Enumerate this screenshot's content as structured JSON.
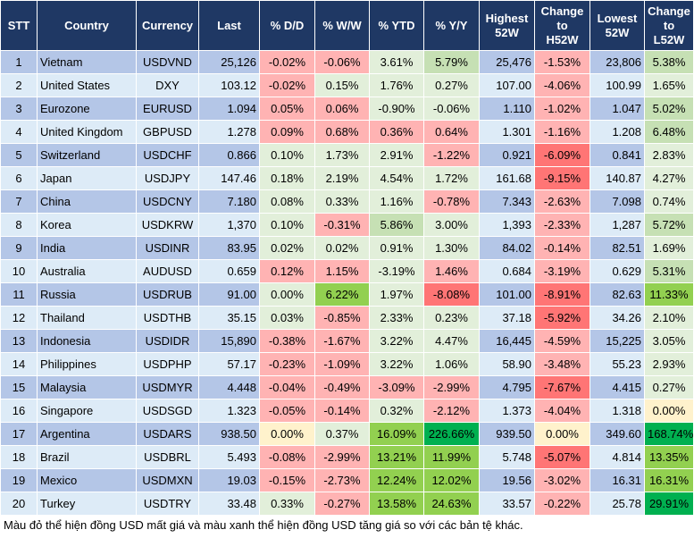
{
  "palette": {
    "r": "#ffb3b3",
    "R": "#ff7575",
    "g": "#e2efda",
    "G": "#c6e0b4",
    "V": "#92d050",
    "D": "#00b050",
    "y": "#fff2cc"
  },
  "headers": [
    "STT",
    "Country",
    "Currency",
    "Last",
    "% D/D",
    "% W/W",
    "% YTD",
    "% Y/Y",
    "Highest\n52W",
    "Change\nto\nH52W",
    "Lowest\n52W",
    "Change\nto\nL52W"
  ],
  "rows": [
    {
      "cells": [
        "1",
        "Vietnam",
        "USDVND",
        "25,126",
        "-0.02%",
        "-0.06%",
        "3.61%",
        "5.79%",
        "25,476",
        "-1.53%",
        "23,806",
        "5.38%"
      ],
      "colors": "rrgGrG"
    },
    {
      "cells": [
        "2",
        "United States",
        "DXY",
        "103.12",
        "-0.02%",
        "0.15%",
        "1.76%",
        "0.27%",
        "107.00",
        "-4.06%",
        "100.99",
        "1.65%"
      ],
      "colors": "rgggrg"
    },
    {
      "cells": [
        "3",
        "Eurozone",
        "EURUSD",
        "1.094",
        "0.05%",
        "0.06%",
        "-0.90%",
        "-0.06%",
        "1.110",
        "-1.02%",
        "1.047",
        "5.02%"
      ],
      "colors": "rrggrG"
    },
    {
      "cells": [
        "4",
        "United Kingdom",
        "GBPUSD",
        "1.278",
        "0.09%",
        "0.68%",
        "0.36%",
        "0.64%",
        "1.301",
        "-1.16%",
        "1.208",
        "6.48%"
      ],
      "colors": "rrrrrG"
    },
    {
      "cells": [
        "5",
        "Switzerland",
        "USDCHF",
        "0.866",
        "0.10%",
        "1.73%",
        "2.91%",
        "-1.22%",
        "0.921",
        "-6.09%",
        "0.841",
        "2.83%"
      ],
      "colors": "gggrRg"
    },
    {
      "cells": [
        "6",
        "Japan",
        "USDJPY",
        "147.46",
        "0.18%",
        "2.19%",
        "4.54%",
        "1.72%",
        "161.68",
        "-9.15%",
        "140.87",
        "4.27%"
      ],
      "colors": "ggggRg"
    },
    {
      "cells": [
        "7",
        "China",
        "USDCNY",
        "7.180",
        "0.08%",
        "0.33%",
        "1.16%",
        "-0.78%",
        "7.343",
        "-2.63%",
        "7.098",
        "0.74%"
      ],
      "colors": "gggrrg"
    },
    {
      "cells": [
        "8",
        "Korea",
        "USDKRW",
        "1,370",
        "0.10%",
        "-0.31%",
        "5.86%",
        "3.00%",
        "1,393",
        "-2.33%",
        "1,287",
        "5.72%"
      ],
      "colors": "grGgrG"
    },
    {
      "cells": [
        "9",
        "India",
        "USDINR",
        "83.95",
        "0.02%",
        "0.02%",
        "0.91%",
        "1.30%",
        "84.02",
        "-0.14%",
        "82.51",
        "1.69%"
      ],
      "colors": "ggggrg"
    },
    {
      "cells": [
        "10",
        "Australia",
        "AUDUSD",
        "0.659",
        "0.12%",
        "1.15%",
        "-3.19%",
        "1.46%",
        "0.684",
        "-3.19%",
        "0.629",
        "5.31%"
      ],
      "colors": "rrgrrG"
    },
    {
      "cells": [
        "11",
        "Russia",
        "USDRUB",
        "91.00",
        "0.00%",
        "6.22%",
        "1.97%",
        "-8.08%",
        "101.00",
        "-8.91%",
        "82.63",
        "11.33%"
      ],
      "colors": "gVgRRV"
    },
    {
      "cells": [
        "12",
        "Thailand",
        "USDTHB",
        "35.15",
        "0.03%",
        "-0.85%",
        "2.33%",
        "0.23%",
        "37.18",
        "-5.92%",
        "34.26",
        "2.10%"
      ],
      "colors": "grggRg"
    },
    {
      "cells": [
        "13",
        "Indonesia",
        "USDIDR",
        "15,890",
        "-0.38%",
        "-1.67%",
        "3.22%",
        "4.47%",
        "16,445",
        "-4.59%",
        "15,225",
        "3.05%"
      ],
      "colors": "rrggrg"
    },
    {
      "cells": [
        "14",
        "Philippines",
        "USDPHP",
        "57.17",
        "-0.23%",
        "-1.09%",
        "3.22%",
        "1.06%",
        "58.90",
        "-3.48%",
        "55.23",
        "2.93%"
      ],
      "colors": "rrggrg"
    },
    {
      "cells": [
        "15",
        "Malaysia",
        "USDMYR",
        "4.448",
        "-0.04%",
        "-0.49%",
        "-3.09%",
        "-2.99%",
        "4.795",
        "-7.67%",
        "4.415",
        "0.27%"
      ],
      "colors": "rrrrRg"
    },
    {
      "cells": [
        "16",
        "Singapore",
        "USDSGD",
        "1.323",
        "-0.05%",
        "-0.14%",
        "0.32%",
        "-2.12%",
        "1.373",
        "-4.04%",
        "1.318",
        "0.00%"
      ],
      "colors": "rrgrry"
    },
    {
      "cells": [
        "17",
        "Argentina",
        "USDARS",
        "938.50",
        "0.00%",
        "0.37%",
        "16.09%",
        "226.66%",
        "939.50",
        "0.00%",
        "349.60",
        "168.74%"
      ],
      "colors": "ygVDyD"
    },
    {
      "cells": [
        "18",
        "Brazil",
        "USDBRL",
        "5.493",
        "-0.08%",
        "-2.99%",
        "13.21%",
        "11.99%",
        "5.748",
        "-5.07%",
        "4.814",
        "13.35%"
      ],
      "colors": "rrVVRV"
    },
    {
      "cells": [
        "19",
        "Mexico",
        "USDMXN",
        "19.03",
        "-0.15%",
        "-2.73%",
        "12.24%",
        "12.02%",
        "19.56",
        "-3.02%",
        "16.31",
        "16.31%"
      ],
      "colors": "rrVVrV"
    },
    {
      "cells": [
        "20",
        "Turkey",
        "USDTRY",
        "33.48",
        "0.33%",
        "-0.27%",
        "13.58%",
        "24.63%",
        "33.57",
        "-0.22%",
        "25.78",
        "29.91%"
      ],
      "colors": "grVVrD"
    }
  ],
  "footer": "Màu đỏ thể hiện đồng USD mất giá và màu xanh thể hiện đồng USD tăng giá so với các bản tệ khác."
}
